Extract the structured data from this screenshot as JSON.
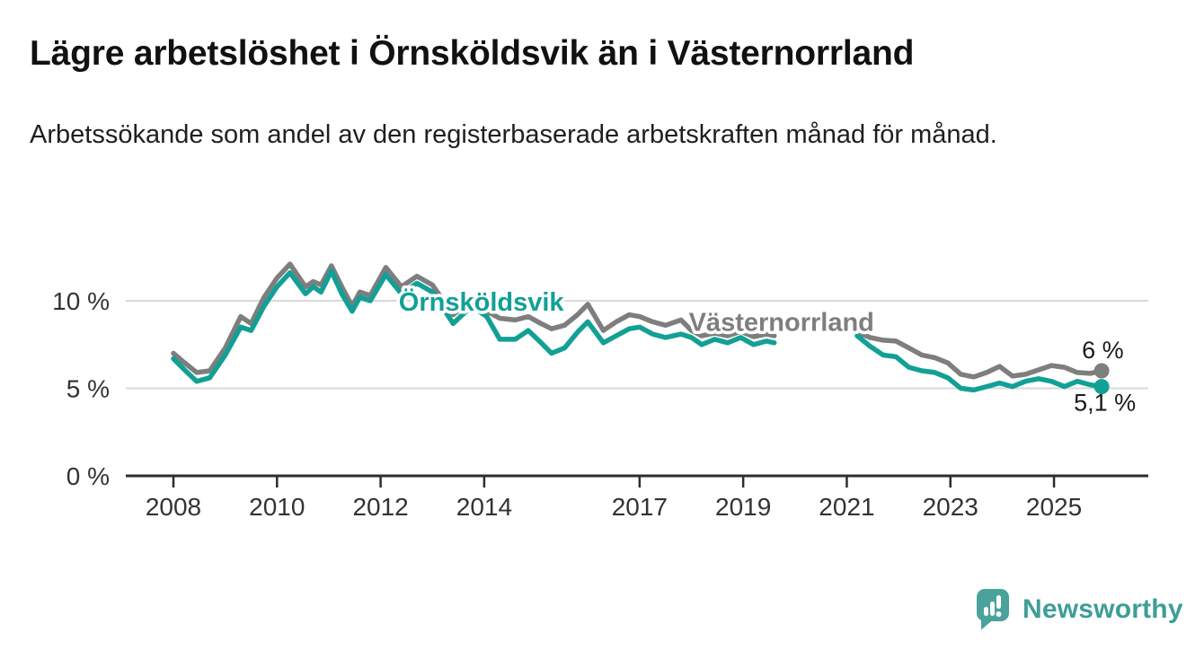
{
  "header": {
    "title": "Lägre arbetslöshet i Örnsköldsvik än i Västernorrland",
    "subtitle": "Arbetssökande som andel av den registerbaserade arbetskraften månad för månad."
  },
  "branding": {
    "logo_text": "Newsworthy",
    "logo_color": "#3E9E96"
  },
  "chart_data": {
    "type": "line",
    "title": "Lägre arbetslöshet i Örnsköldsvik än i Västernorrland",
    "subtitle": "Arbetssökande som andel av den registerbaserade arbetskraften månad för månad.",
    "unit": "%",
    "grid": true,
    "x_ticks": [
      2008,
      2010,
      2012,
      2014,
      2017,
      2019,
      2021,
      2023,
      2025
    ],
    "x_range": [
      2007.1,
      2026.8
    ],
    "y_ticks": [
      0,
      5,
      10
    ],
    "y_tick_labels": [
      "0 %",
      "5 %",
      "10 %"
    ],
    "y_range": [
      0,
      13.3
    ],
    "data_gap_x": [
      2019.6,
      2021.2
    ],
    "x": [
      2008.0,
      2008.2,
      2008.45,
      2008.7,
      2009.0,
      2009.3,
      2009.5,
      2009.75,
      2010.0,
      2010.25,
      2010.55,
      2010.7,
      2010.85,
      2011.05,
      2011.25,
      2011.45,
      2011.6,
      2011.8,
      2012.1,
      2012.4,
      2012.7,
      2013.0,
      2013.4,
      2013.65,
      2013.85,
      2014.05,
      2014.3,
      2014.6,
      2014.85,
      2015.1,
      2015.3,
      2015.55,
      2015.8,
      2016.0,
      2016.3,
      2016.55,
      2016.8,
      2017.0,
      2017.25,
      2017.5,
      2017.8,
      2018.0,
      2018.2,
      2018.45,
      2018.7,
      2018.95,
      2019.2,
      2019.45,
      2019.6,
      null,
      2021.2,
      2021.45,
      2021.7,
      2021.95,
      2022.2,
      2022.45,
      2022.7,
      2022.95,
      2023.2,
      2023.45,
      2023.7,
      2023.95,
      2024.2,
      2024.45,
      2024.7,
      2024.95,
      2025.2,
      2025.45,
      2025.7,
      2025.92
    ],
    "series": [
      {
        "name": "Örnsköldsvik",
        "color": "#12A096",
        "end_label": "5,1 %",
        "end_value": 5.1,
        "label_pos": {
          "x": 2012.35,
          "value": 9.95
        },
        "values": [
          6.7,
          6.1,
          5.4,
          5.6,
          6.9,
          8.5,
          8.3,
          9.7,
          10.8,
          11.6,
          10.4,
          10.8,
          10.5,
          11.7,
          10.4,
          9.4,
          10.2,
          10.0,
          11.5,
          10.4,
          11.0,
          10.5,
          8.7,
          9.4,
          9.5,
          9.1,
          7.8,
          7.8,
          8.3,
          7.6,
          7.0,
          7.3,
          8.2,
          8.8,
          7.6,
          8.0,
          8.4,
          8.5,
          8.1,
          7.9,
          8.1,
          7.9,
          7.5,
          7.8,
          7.6,
          7.9,
          7.5,
          7.7,
          7.6,
          null,
          8.0,
          7.4,
          6.9,
          6.8,
          6.2,
          6.0,
          5.9,
          5.6,
          5.0,
          4.9,
          5.1,
          5.3,
          5.1,
          5.4,
          5.55,
          5.4,
          5.1,
          5.4,
          5.2,
          5.1
        ]
      },
      {
        "name": "Västernorrland",
        "color": "#7E7E7E",
        "end_label": "6 %",
        "end_value": 6.0,
        "label_pos": {
          "x": 2017.95,
          "value": 8.8
        },
        "values": [
          7.0,
          6.5,
          5.9,
          6.0,
          7.3,
          9.1,
          8.7,
          10.2,
          11.3,
          12.1,
          10.8,
          11.1,
          10.9,
          12.0,
          10.8,
          9.7,
          10.5,
          10.3,
          11.9,
          10.8,
          11.4,
          10.9,
          9.2,
          9.8,
          9.7,
          9.4,
          9.0,
          8.9,
          9.1,
          8.7,
          8.4,
          8.6,
          9.2,
          9.8,
          8.3,
          8.8,
          9.2,
          9.1,
          8.8,
          8.6,
          8.9,
          8.3,
          8.0,
          8.15,
          8.0,
          8.25,
          7.95,
          8.1,
          8.0,
          null,
          8.2,
          7.9,
          7.75,
          7.7,
          7.3,
          6.9,
          6.75,
          6.45,
          5.8,
          5.65,
          5.9,
          6.25,
          5.7,
          5.8,
          6.05,
          6.3,
          6.2,
          5.9,
          5.85,
          6.0
        ]
      }
    ]
  }
}
